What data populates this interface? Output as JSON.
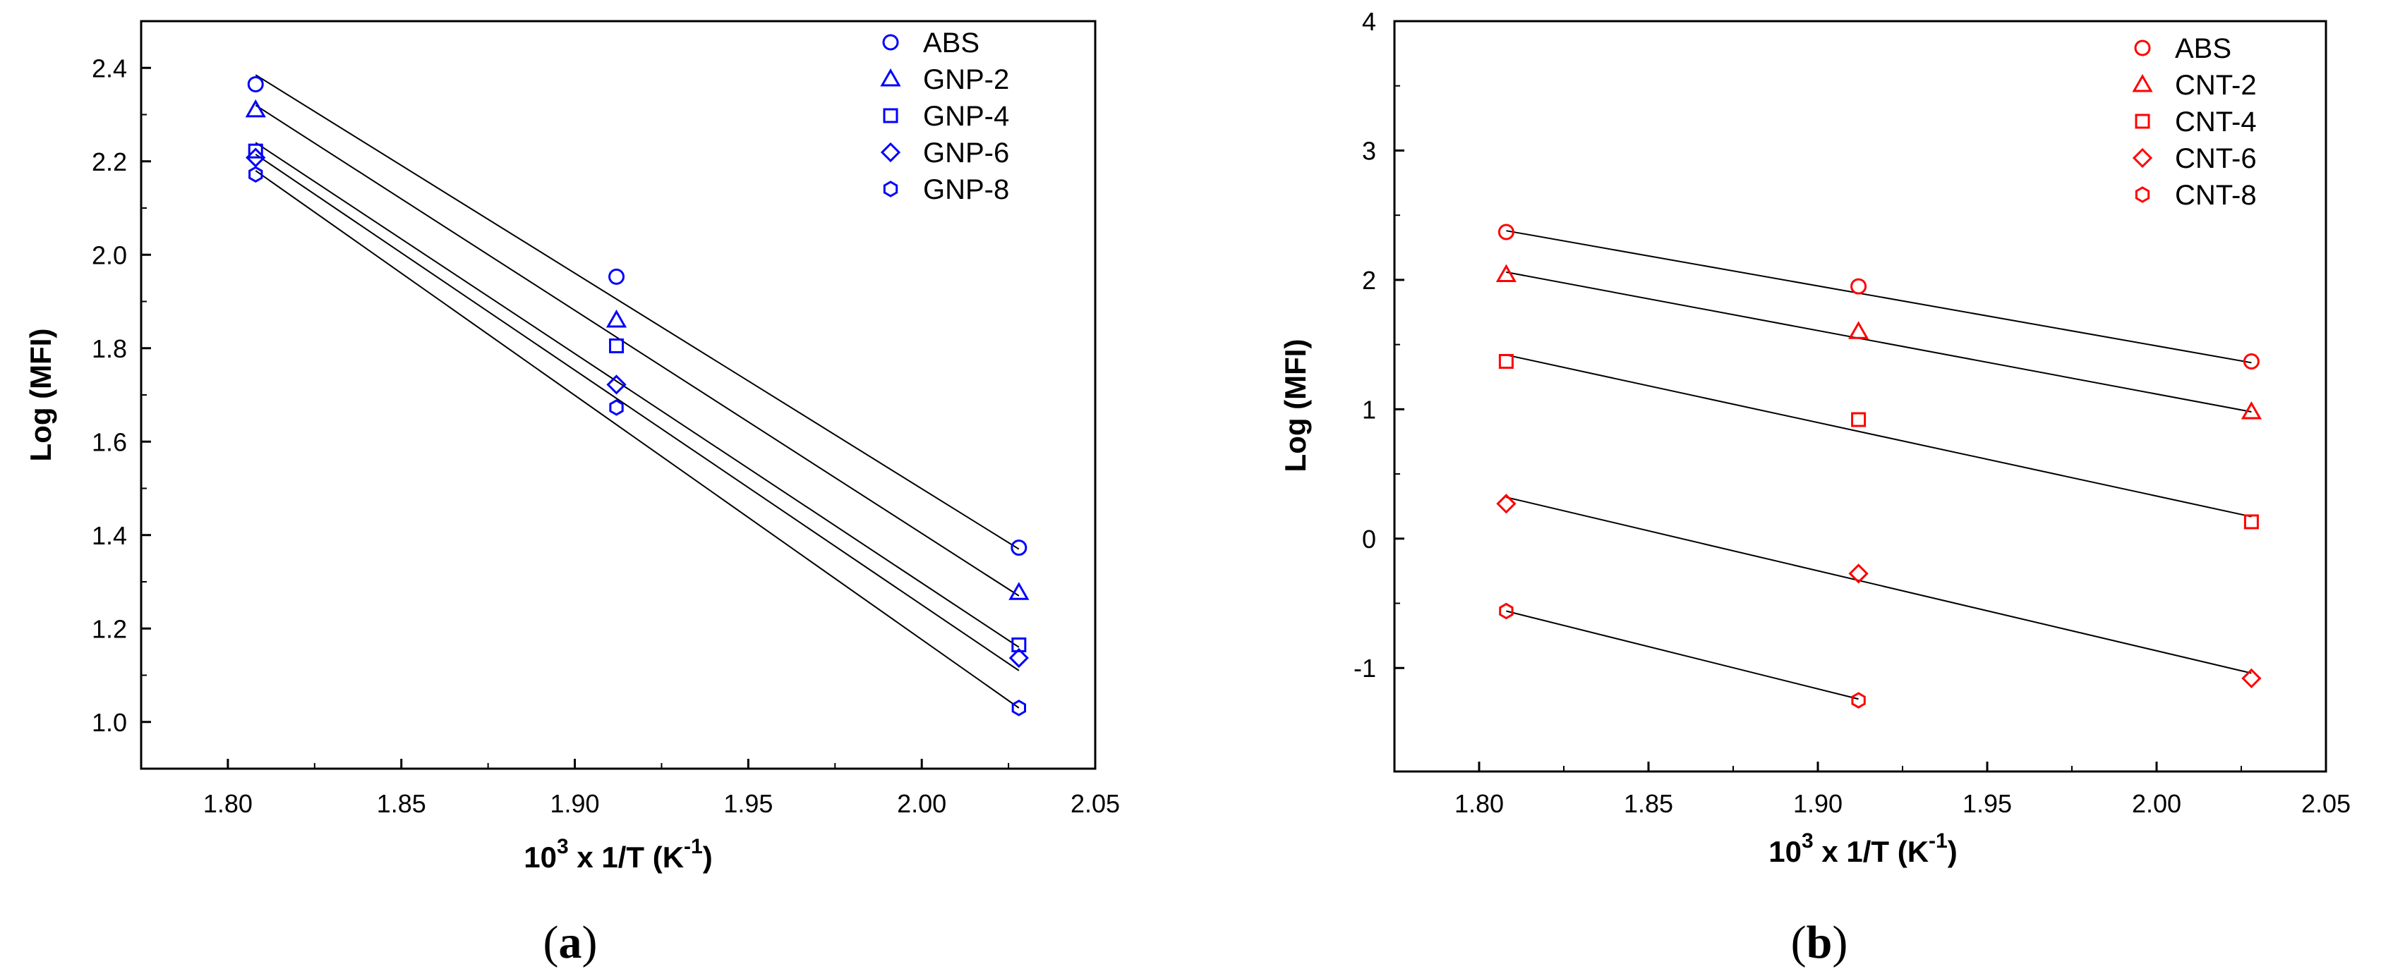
{
  "chart_data": [
    {
      "type": "scatter",
      "panel": "a",
      "panel_label_open": "(",
      "panel_label_letter": "a",
      "panel_label_close": ")",
      "xlabel": "10",
      "xlabel_sup": "3",
      "xlabel_mid": " x 1/T (K",
      "xlabel_sup2": "-1",
      "xlabel_end": ")",
      "ylabel": "Log (MFI)",
      "xlim": [
        1.775,
        2.05
      ],
      "ylim": [
        0.9,
        2.5
      ],
      "xticks": [
        1.8,
        1.85,
        1.9,
        1.95,
        2.0,
        2.05
      ],
      "xtick_labels": [
        "1.80",
        "1.85",
        "1.90",
        "1.95",
        "2.00",
        "2.05"
      ],
      "yticks": [
        1.0,
        1.2,
        1.4,
        1.6,
        1.8,
        2.0,
        2.2,
        2.4
      ],
      "ytick_labels": [
        "1.0",
        "1.2",
        "1.4",
        "1.6",
        "1.8",
        "2.0",
        "2.2",
        "2.4"
      ],
      "color": "#0000ff",
      "legend_position": "top-right",
      "series": [
        {
          "name": "ABS",
          "marker": "circle",
          "x": [
            1.808,
            1.912,
            2.028
          ],
          "y": [
            2.365,
            1.953,
            1.373
          ],
          "fit": [
            2.385,
            1.37
          ]
        },
        {
          "name": "GNP-2",
          "marker": "triangle",
          "x": [
            1.808,
            1.912,
            2.028
          ],
          "y": [
            2.31,
            1.86,
            1.277
          ],
          "fit": [
            2.32,
            1.27
          ]
        },
        {
          "name": "GNP-4",
          "marker": "square",
          "x": [
            1.808,
            1.912,
            2.028
          ],
          "y": [
            2.222,
            1.805,
            1.165
          ],
          "fit": [
            2.24,
            1.16
          ]
        },
        {
          "name": "GNP-6",
          "marker": "diamond",
          "x": [
            1.808,
            1.912,
            2.028
          ],
          "y": [
            2.208,
            1.722,
            1.137
          ],
          "fit": [
            2.215,
            1.11
          ]
        },
        {
          "name": "GNP-8",
          "marker": "hexagon",
          "x": [
            1.808,
            1.912,
            2.028
          ],
          "y": [
            2.172,
            1.673,
            1.03
          ],
          "fit": [
            2.18,
            1.03
          ]
        }
      ]
    },
    {
      "type": "scatter",
      "panel": "b",
      "panel_label_open": "(",
      "panel_label_letter": "b",
      "panel_label_close": ")",
      "xlabel": "10",
      "xlabel_sup": "3",
      "xlabel_mid": " x 1/T (K",
      "xlabel_sup2": "-1",
      "xlabel_end": ")",
      "ylabel": "Log (MFI)",
      "xlim": [
        1.775,
        2.05
      ],
      "ylim": [
        -1.8,
        4
      ],
      "xticks": [
        1.8,
        1.85,
        1.9,
        1.95,
        2.0,
        2.05
      ],
      "xtick_labels": [
        "1.80",
        "1.85",
        "1.90",
        "1.95",
        "2.00",
        "2.05"
      ],
      "yticks": [
        -1,
        0,
        1,
        2,
        3,
        4
      ],
      "ytick_labels": [
        "-1",
        "0",
        "1",
        "2",
        "3",
        "4"
      ],
      "color": "#ff0000",
      "legend_position": "top-right",
      "series": [
        {
          "name": "ABS",
          "marker": "circle",
          "x": [
            1.808,
            1.912,
            2.028
          ],
          "y": [
            2.37,
            1.95,
            1.37
          ],
          "fit": [
            2.38,
            1.36
          ]
        },
        {
          "name": "CNT-2",
          "marker": "triangle",
          "x": [
            1.808,
            1.912,
            2.028
          ],
          "y": [
            2.04,
            1.6,
            0.98
          ],
          "fit": [
            2.06,
            0.98
          ]
        },
        {
          "name": "CNT-4",
          "marker": "square",
          "x": [
            1.808,
            1.912,
            2.028
          ],
          "y": [
            1.37,
            0.92,
            0.13
          ],
          "fit": [
            1.42,
            0.17
          ]
        },
        {
          "name": "CNT-6",
          "marker": "diamond",
          "x": [
            1.808,
            1.912,
            2.028
          ],
          "y": [
            0.27,
            -0.27,
            -1.08
          ],
          "fit": [
            0.32,
            -1.04
          ]
        },
        {
          "name": "CNT-8",
          "marker": "hexagon",
          "x": [
            1.808,
            1.912
          ],
          "y": [
            -0.56,
            -1.25
          ],
          "fit": [
            -0.56,
            -1.24
          ]
        }
      ]
    }
  ]
}
